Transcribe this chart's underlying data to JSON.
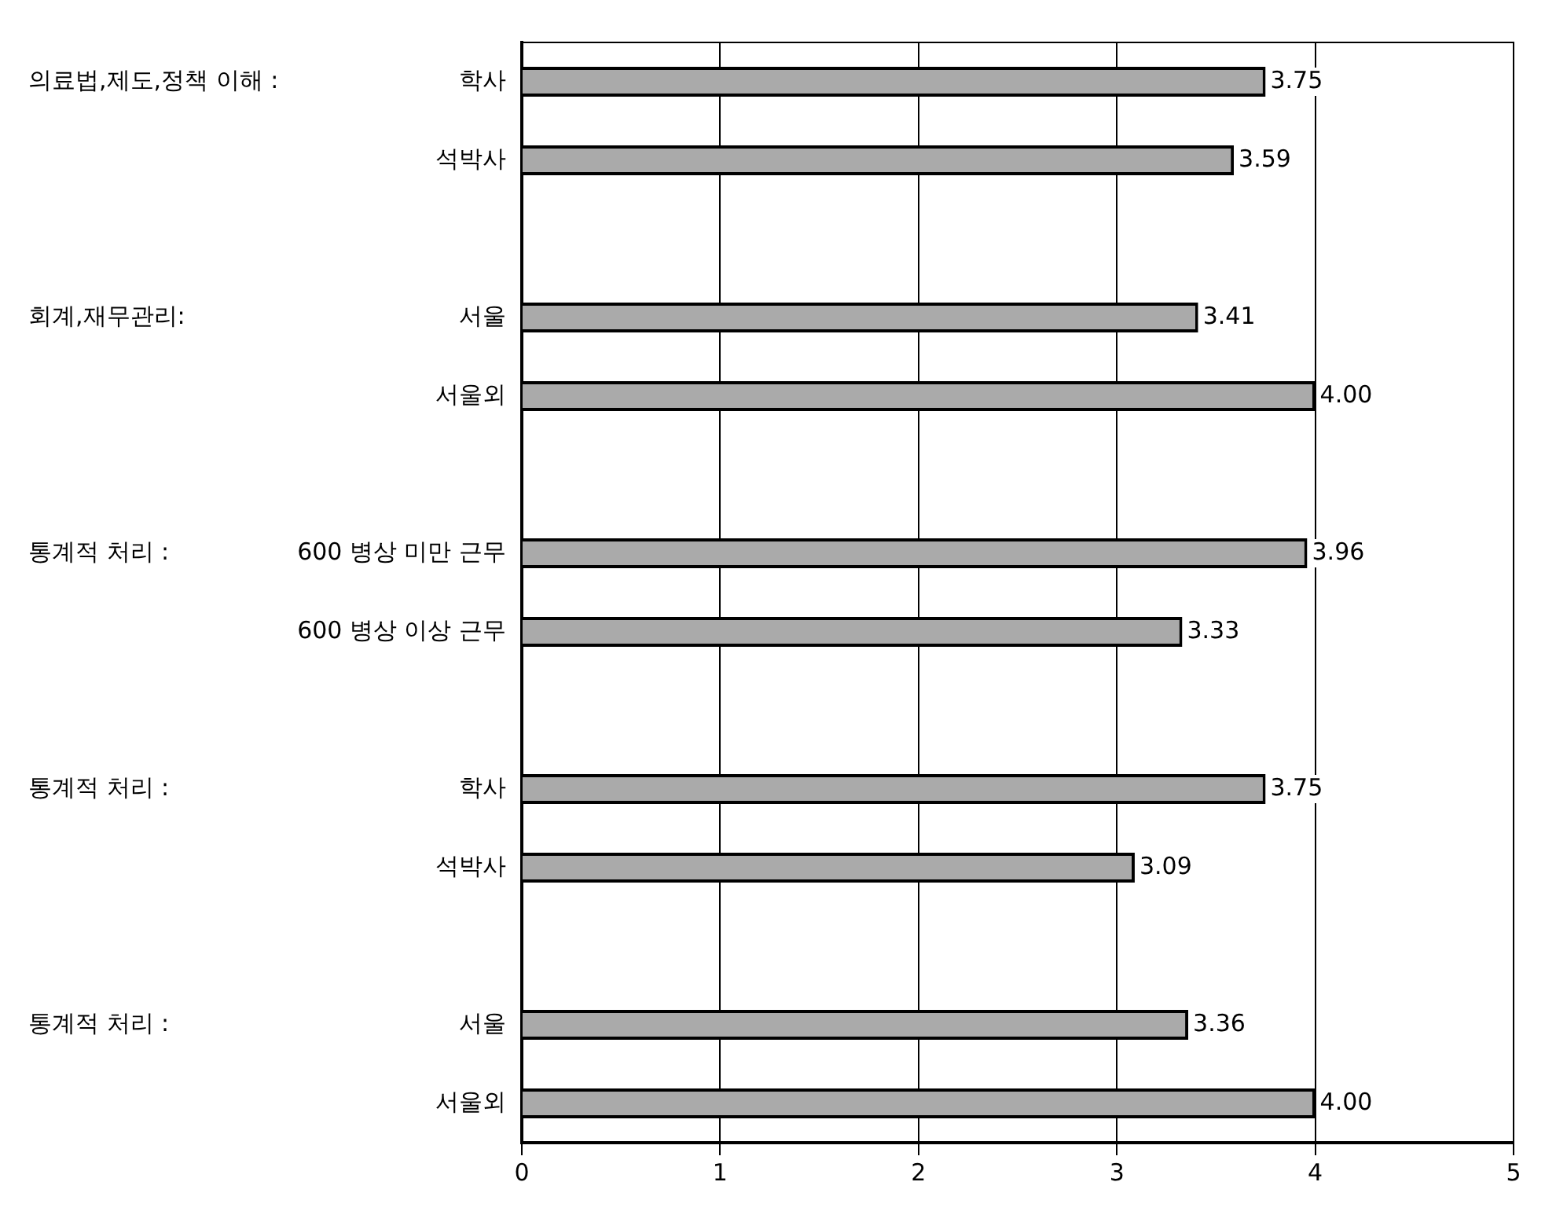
{
  "chart_data": {
    "type": "bar",
    "orientation": "horizontal",
    "categories": [
      "학사",
      "석박사",
      null,
      "서울",
      "서울외",
      null,
      "600 병상 미만 근무",
      "600 병상 이상 근무",
      null,
      "학사",
      "석박사",
      null,
      "서울",
      "서울외"
    ],
    "values": [
      3.75,
      3.59,
      null,
      3.41,
      4.0,
      null,
      3.96,
      3.33,
      null,
      3.75,
      3.09,
      null,
      3.36,
      4.0
    ],
    "value_labels": [
      "3.75",
      "3.59",
      null,
      "3.41",
      "4.00",
      null,
      "3.96",
      "3.33",
      null,
      "3.75",
      "3.09",
      null,
      "3.36",
      "4.00"
    ],
    "color": "#aaaaaa",
    "annotations": [
      "의료법,제도,정책 이해 :",
      "회계,재무관리:",
      "통계적 처리 :",
      "통계적 처리 :",
      "통계적 처리 :"
    ],
    "xlim": [
      0,
      5
    ],
    "xticks": [
      0,
      1,
      2,
      3,
      4,
      5
    ],
    "grid": "x"
  }
}
